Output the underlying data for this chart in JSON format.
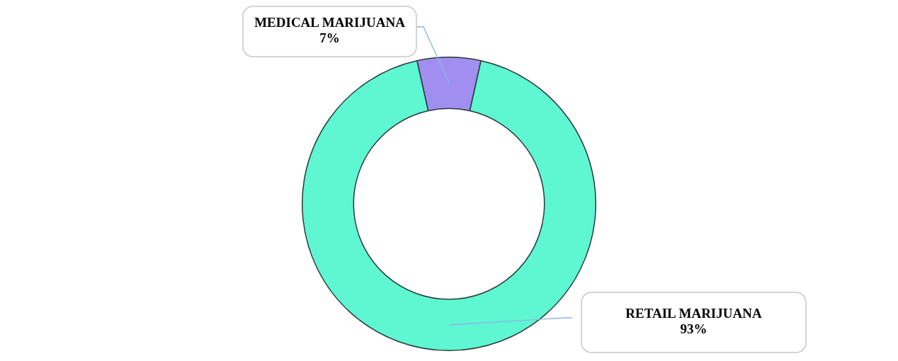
{
  "chart_data": {
    "type": "donut",
    "categories": [
      "MEDICAL MARIJUANA",
      "RETAIL MARIJUANA"
    ],
    "values": [
      7,
      93
    ],
    "colors": [
      "#a08ff0",
      "#5ef7d2"
    ],
    "value_labels": [
      "7%",
      "93%"
    ],
    "legend": false
  }
}
